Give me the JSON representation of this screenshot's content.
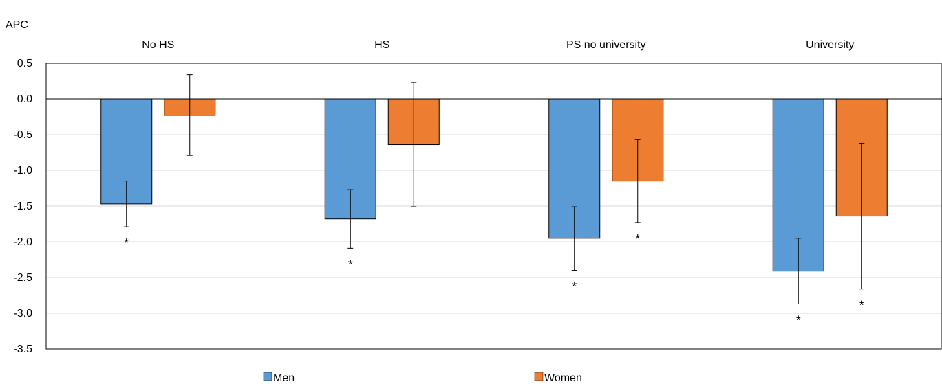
{
  "chart_data": {
    "type": "bar",
    "ylabel": "APC",
    "categories": [
      "No HS",
      "HS",
      "PS no university",
      "University"
    ],
    "ylim": [
      -3.5,
      0.5
    ],
    "yticks": [
      "0.5",
      "0.0",
      "-0.5",
      "-1.0",
      "-1.5",
      "-2.0",
      "-2.5",
      "-3.0",
      "-3.5"
    ],
    "grid": true,
    "legend_position": "bottom",
    "significance_marker": "*",
    "series": [
      {
        "name": "Men",
        "color": "#5b9bd5",
        "values": [
          -1.47,
          -1.68,
          -1.95,
          -2.41
        ],
        "ci_upper": [
          -1.15,
          -1.27,
          -1.51,
          -1.95
        ],
        "ci_lower": [
          -1.79,
          -2.09,
          -2.4,
          -2.87
        ],
        "significant": [
          true,
          true,
          true,
          true
        ]
      },
      {
        "name": "Women",
        "color": "#ed7d31",
        "values": [
          -0.23,
          -0.64,
          -1.15,
          -1.64
        ],
        "ci_upper": [
          0.34,
          0.23,
          -0.57,
          -0.62
        ],
        "ci_lower": [
          -0.79,
          -1.51,
          -1.73,
          -2.66
        ],
        "significant": [
          false,
          false,
          true,
          true
        ]
      }
    ]
  }
}
